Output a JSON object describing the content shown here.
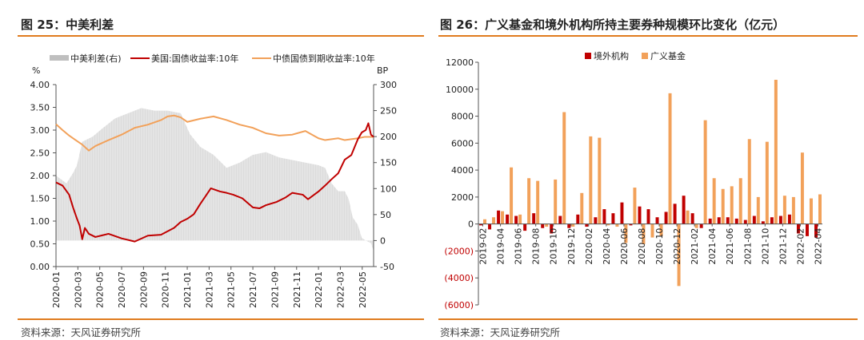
{
  "colors": {
    "accent_rule": "#e07b1e",
    "us10y": "#c00000",
    "cgb10y": "#f2a15a",
    "spread": "#bfbfbf",
    "foreign": "#c00000",
    "fund": "#f2a15a"
  },
  "left": {
    "title": "图 25：中美利差",
    "source": "资料来源：天风证券研究所",
    "legend": [
      "中美利差(右)",
      "美国:国债收益率:10年",
      "中债国债到期收益率:10年"
    ],
    "y_left_unit": "%",
    "y_right_unit": "BP"
  },
  "right": {
    "title": "图 26：广义基金和境外机构所持主要券种规模环比变化（亿元）",
    "source": "资料来源：天风证券研究所",
    "legend": [
      "境外机构",
      "广义基金"
    ]
  },
  "chart_data": [
    {
      "type": "line",
      "title": "图 25：中美利差",
      "ylabel_left": "%",
      "ylabel_right": "BP",
      "ylim_left": [
        0,
        4
      ],
      "ylim_right": [
        -50,
        300
      ],
      "yticks_left": [
        "0.00",
        "0.50",
        "1.00",
        "1.50",
        "2.00",
        "2.50",
        "3.00",
        "3.50",
        "4.00"
      ],
      "yticks_right": [
        "-50",
        "0",
        "50",
        "100",
        "150",
        "200",
        "250",
        "300"
      ],
      "xticks": [
        "2020-01",
        "2020-03",
        "2020-05",
        "2020-07",
        "2020-09",
        "2020-11",
        "2021-01",
        "2021-03",
        "2021-05",
        "2021-07",
        "2021-09",
        "2021-11",
        "2022-01",
        "2022-03",
        "2022-05"
      ],
      "x_range": [
        2020.0,
        2022.42
      ],
      "series": [
        {
          "name": "美国:国债收益率:10年",
          "axis": "left",
          "x": [
            2020.0,
            2020.05,
            2020.1,
            2020.13,
            2020.16,
            2020.18,
            2020.2,
            2020.22,
            2020.25,
            2020.3,
            2020.4,
            2020.5,
            2020.6,
            2020.7,
            2020.8,
            2020.9,
            2020.95,
            2021.0,
            2021.05,
            2021.1,
            2021.14,
            2021.18,
            2021.25,
            2021.3,
            2021.35,
            2021.42,
            2021.5,
            2021.55,
            2021.6,
            2021.68,
            2021.75,
            2021.8,
            2021.88,
            2021.92,
            2022.0,
            2022.05,
            2022.1,
            2022.15,
            2022.2,
            2022.25,
            2022.3,
            2022.33,
            2022.36,
            2022.38,
            2022.4,
            2022.42
          ],
          "values": [
            1.85,
            1.78,
            1.58,
            1.3,
            1.05,
            0.9,
            0.6,
            0.85,
            0.72,
            0.65,
            0.72,
            0.62,
            0.55,
            0.68,
            0.7,
            0.85,
            0.98,
            1.05,
            1.15,
            1.38,
            1.55,
            1.72,
            1.65,
            1.62,
            1.58,
            1.5,
            1.3,
            1.28,
            1.35,
            1.42,
            1.52,
            1.62,
            1.58,
            1.48,
            1.65,
            1.78,
            1.92,
            2.05,
            2.35,
            2.45,
            2.8,
            2.95,
            3.0,
            3.15,
            2.9,
            2.85
          ]
        },
        {
          "name": "中债国债到期收益率:10年",
          "axis": "left",
          "x": [
            2020.0,
            2020.05,
            2020.1,
            2020.15,
            2020.2,
            2020.25,
            2020.3,
            2020.4,
            2020.5,
            2020.6,
            2020.7,
            2020.8,
            2020.85,
            2020.9,
            2020.95,
            2021.0,
            2021.1,
            2021.2,
            2021.3,
            2021.4,
            2021.5,
            2021.6,
            2021.7,
            2021.8,
            2021.9,
            2022.0,
            2022.05,
            2022.1,
            2022.15,
            2022.2,
            2022.25,
            2022.3,
            2022.35,
            2022.42
          ],
          "values": [
            3.13,
            3.0,
            2.88,
            2.78,
            2.68,
            2.55,
            2.65,
            2.78,
            2.9,
            3.05,
            3.12,
            3.22,
            3.3,
            3.32,
            3.28,
            3.18,
            3.25,
            3.3,
            3.22,
            3.12,
            3.05,
            2.93,
            2.88,
            2.9,
            2.98,
            2.82,
            2.78,
            2.8,
            2.82,
            2.78,
            2.8,
            2.82,
            2.85,
            2.85
          ]
        },
        {
          "name": "中美利差(右)",
          "axis": "right",
          "x": [
            2020.0,
            2020.08,
            2020.13,
            2020.16,
            2020.2,
            2020.28,
            2020.35,
            2020.45,
            2020.55,
            2020.65,
            2020.75,
            2020.85,
            2020.95,
            2021.02,
            2021.1,
            2021.2,
            2021.3,
            2021.4,
            2021.5,
            2021.6,
            2021.7,
            2021.8,
            2021.9,
            2022.0,
            2022.05,
            2022.1,
            2022.15,
            2022.2,
            2022.23,
            2022.26,
            2022.3,
            2022.33,
            2022.36,
            2022.4,
            2022.42
          ],
          "values": [
            125,
            110,
            130,
            145,
            190,
            200,
            215,
            235,
            245,
            255,
            250,
            250,
            245,
            205,
            180,
            165,
            140,
            150,
            165,
            170,
            160,
            155,
            150,
            145,
            140,
            110,
            95,
            95,
            80,
            45,
            30,
            5,
            0,
            -5,
            -20
          ]
        }
      ]
    },
    {
      "type": "bar",
      "title": "图 26：广义基金和境外机构所持主要券种规模环比变化（亿元）",
      "ylim": [
        -6000,
        12000
      ],
      "yticks": [
        "(6000)",
        "(4000)",
        "(2000)",
        "0",
        "2000",
        "4000",
        "6000",
        "8000",
        "10000",
        "12000"
      ],
      "categories": [
        "2019-02",
        "2019-03",
        "2019-04",
        "2019-05",
        "2019-06",
        "2019-07",
        "2019-08",
        "2019-09",
        "2019-10",
        "2019-11",
        "2019-12",
        "2020-01",
        "2020-02",
        "2020-03",
        "2020-04",
        "2020-05",
        "2020-06",
        "2020-07",
        "2020-08",
        "2020-09",
        "2020-10",
        "2020-11",
        "2020-12",
        "2021-01",
        "2021-02",
        "2021-03",
        "2021-04",
        "2021-05",
        "2021-06",
        "2021-07",
        "2021-08",
        "2021-09",
        "2021-10",
        "2021-11",
        "2021-12",
        "2022-01",
        "2022-02",
        "2022-03",
        "2022-04"
      ],
      "xtick_labels": [
        "2019-02",
        "2019-04",
        "2019-06",
        "2019-08",
        "2019-10",
        "2019-12",
        "2020-02",
        "2020-04",
        "2020-06",
        "2020-08",
        "2020-10",
        "2020-12",
        "2021-02",
        "2021-04",
        "2021-06",
        "2021-08",
        "2021-10",
        "2021-12",
        "2022-02",
        "2022-04"
      ],
      "series": [
        {
          "name": "境外机构",
          "values": [
            -100,
            -400,
            1000,
            700,
            600,
            -500,
            800,
            -300,
            -700,
            600,
            -300,
            700,
            -200,
            500,
            1100,
            800,
            1600,
            -100,
            1300,
            1100,
            500,
            900,
            1500,
            2100,
            800,
            -300,
            400,
            500,
            500,
            400,
            300,
            600,
            200,
            500,
            600,
            700,
            -700,
            -900,
            -1000
          ]
        },
        {
          "name": "广义基金",
          "values": [
            350,
            500,
            950,
            4200,
            700,
            3400,
            3200,
            -200,
            3300,
            8300,
            -200,
            2300,
            6500,
            6400,
            -100,
            -200,
            -1400,
            2700,
            -1500,
            -1000,
            -900,
            9700,
            -4600,
            1000,
            -300,
            7700,
            3400,
            2600,
            2800,
            3400,
            6300,
            2000,
            6100,
            10700,
            2100,
            2000,
            5300,
            1900,
            2200
          ]
        }
      ]
    }
  ]
}
